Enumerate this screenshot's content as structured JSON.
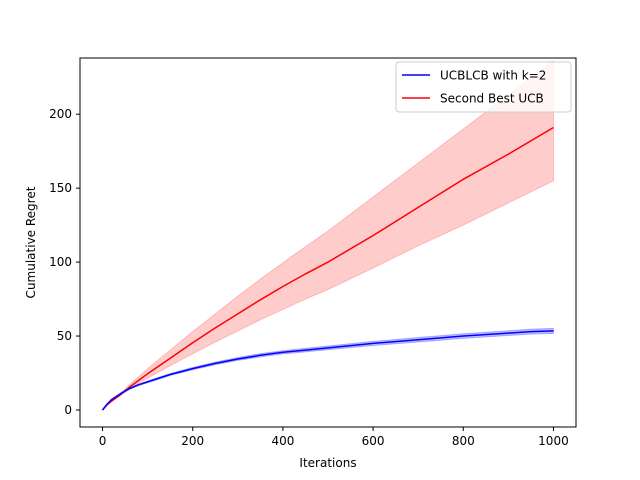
{
  "chart_data": {
    "type": "line",
    "title": "",
    "xlabel": "Iterations",
    "ylabel": "Cumulative Regret",
    "xlim": [
      -50,
      1050
    ],
    "ylim": [
      -11.5,
      238
    ],
    "xticks": [
      0,
      200,
      400,
      600,
      800,
      1000
    ],
    "yticks": [
      0,
      50,
      100,
      150,
      200
    ],
    "legend_position": "top-right",
    "grid": false,
    "series": [
      {
        "name": "UCBLCB with k=2",
        "color": "#0000ff",
        "x": [
          0,
          10,
          20,
          40,
          60,
          80,
          100,
          150,
          200,
          250,
          300,
          350,
          400,
          450,
          500,
          600,
          700,
          800,
          900,
          950,
          1000
        ],
        "y": [
          0,
          4,
          7,
          11,
          14.5,
          17,
          19,
          24,
          28,
          31.5,
          34.5,
          37,
          39,
          40.5,
          42,
          45,
          47.5,
          50,
          52,
          53,
          53.5
        ],
        "lower": [
          0,
          3.8,
          6.6,
          10.5,
          14,
          16.5,
          18.4,
          23.3,
          27.2,
          30.6,
          33.5,
          35.9,
          37.9,
          39.3,
          40.7,
          43.6,
          46,
          48.4,
          50.4,
          51.3,
          51.8
        ],
        "upper": [
          0,
          4.2,
          7.4,
          11.5,
          15,
          17.5,
          19.6,
          24.7,
          28.8,
          32.4,
          35.5,
          38.1,
          40.1,
          41.7,
          43.3,
          46.4,
          49,
          51.6,
          53.6,
          54.7,
          55.2
        ]
      },
      {
        "name": "Second Best UCB",
        "color": "#ff0000",
        "fill_color": "#ff0000",
        "x": [
          0,
          10,
          20,
          40,
          60,
          80,
          100,
          150,
          200,
          250,
          300,
          350,
          400,
          450,
          500,
          600,
          700,
          800,
          900,
          1000
        ],
        "y": [
          0,
          3.5,
          6,
          10.5,
          15.5,
          20,
          24.5,
          35,
          45.5,
          55.5,
          65,
          74.5,
          83.5,
          92,
          100,
          118,
          137,
          156,
          173,
          191
        ],
        "lower": [
          0,
          3.3,
          5.7,
          9.8,
          14.2,
          18,
          21.5,
          30,
          38,
          46,
          53.5,
          61,
          68,
          75,
          81.5,
          96,
          111,
          125,
          140,
          155
        ],
        "upper": [
          0,
          3.8,
          6.4,
          11.5,
          17,
          22.5,
          28,
          40.5,
          53,
          65,
          77,
          88.5,
          99.5,
          110.5,
          121,
          144,
          167,
          190,
          213,
          236
        ]
      }
    ]
  }
}
